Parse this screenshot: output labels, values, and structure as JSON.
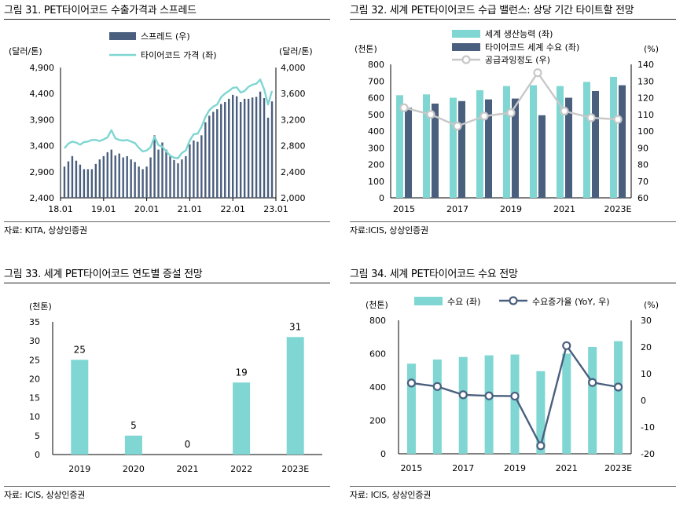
{
  "panels": [
    {
      "title": "그림 31. PET타이어코드 수출가격과 스프레드",
      "source": "자료: KITA, 상상인증권",
      "chart_data": {
        "type": "bar+line",
        "left_unit": "(달러/톤)",
        "right_unit": "(달러/톤)",
        "left_ticks": [
          "4,900",
          "4,400",
          "3,900",
          "3,400",
          "2,900",
          "2,400"
        ],
        "right_ticks": [
          "4,000",
          "3,600",
          "3,200",
          "2,800",
          "2,400",
          "2,000"
        ],
        "ylim_left": [
          2400,
          4900
        ],
        "ylim_right": [
          2000,
          4000
        ],
        "x_ticks": [
          "18.01",
          "19.01",
          "20.01",
          "21.01",
          "22.01",
          "23.01"
        ],
        "series": [
          {
            "name": "스프레드 (우)",
            "type": "bar",
            "color": "#4a5f7e",
            "axis": "right",
            "values": [
              2480,
              2560,
              2640,
              2570,
              2510,
              2440,
              2440,
              2440,
              2520,
              2590,
              2640,
              2700,
              2740,
              2650,
              2680,
              2620,
              2640,
              2590,
              2550,
              2480,
              2440,
              2480,
              2620,
              2960,
              2740,
              2850,
              2740,
              2640,
              2580,
              2530,
              2590,
              2640,
              2820,
              2880,
              2860,
              2960,
              3160,
              3260,
              3320,
              3360,
              3440,
              3470,
              3520,
              3580,
              3560,
              3470,
              3520,
              3520,
              3540,
              3550,
              3630,
              3530,
              3230,
              3480
            ]
          },
          {
            "name": "타이어코드 가격 (좌)",
            "type": "line",
            "color": "#7fd6d2",
            "axis": "left",
            "values": [
              3350,
              3440,
              3480,
              3460,
              3420,
              3470,
              3480,
              3510,
              3510,
              3490,
              3520,
              3560,
              3700,
              3540,
              3510,
              3500,
              3510,
              3480,
              3450,
              3360,
              3290,
              3310,
              3370,
              3570,
              3410,
              3380,
              3290,
              3210,
              3170,
              3160,
              3260,
              3310,
              3500,
              3620,
              3630,
              3760,
              3950,
              4080,
              4150,
              4190,
              4330,
              4400,
              4450,
              4510,
              4520,
              4420,
              4450,
              4530,
              4570,
              4590,
              4670,
              4480,
              4190,
              4450
            ]
          }
        ]
      }
    },
    {
      "title": "그림 32. 세계 PET타이어코드 수급 밸런스: 상당 기간 타이트할 전망",
      "source": "자료:ICIS, 상상인증권",
      "chart_data": {
        "type": "bar+line",
        "left_unit": "(천톤)",
        "right_unit": "(%)",
        "ylim_left": [
          0,
          800
        ],
        "ylim_right": [
          60,
          140
        ],
        "left_ticks": [
          "800",
          "700",
          "600",
          "500",
          "400",
          "300",
          "200",
          "100",
          "0"
        ],
        "right_ticks": [
          "140",
          "130",
          "120",
          "110",
          "100",
          "90",
          "80",
          "70",
          "60"
        ],
        "categories": [
          "2015",
          "2016",
          "2017",
          "2018",
          "2019",
          "2020",
          "2021",
          "2022",
          "2023E"
        ],
        "x_ticks": [
          "2015",
          "2017",
          "2019",
          "2021",
          "2023E"
        ],
        "series": [
          {
            "name": "세계 생산능력 (좌)",
            "type": "bar",
            "color": "#7fd6d2",
            "axis": "left",
            "values": [
              615,
              620,
              600,
              645,
              670,
              675,
              670,
              695,
              725
            ]
          },
          {
            "name": "타이어코드 세계 수요 (좌)",
            "type": "bar",
            "color": "#4a5f7e",
            "axis": "left",
            "values": [
              540,
              565,
              580,
              590,
              595,
              495,
              600,
              640,
              675
            ]
          },
          {
            "name": "공급과잉정도 (우)",
            "type": "line",
            "color": "#c8c8c8",
            "axis": "right",
            "values": [
              114,
              110,
              103,
              109,
              111,
              135,
              112,
              108,
              107
            ]
          }
        ]
      }
    },
    {
      "title": "그림 33. 세계 PET타이어코드 연도별 증설 전망",
      "source": "자료: ICIS, 상상인증권",
      "chart_data": {
        "type": "bar",
        "unit": "(천톤)",
        "ylim": [
          0,
          35
        ],
        "y_ticks": [
          "35",
          "30",
          "25",
          "20",
          "15",
          "10",
          "5",
          "0"
        ],
        "categories": [
          "2019",
          "2020",
          "2021",
          "2022",
          "2023E"
        ],
        "values": [
          25,
          5,
          0,
          19,
          31
        ],
        "labels": [
          "25",
          "5",
          "0",
          "19",
          "31"
        ],
        "color": "#7fd6d2"
      }
    },
    {
      "title": "그림 34. 세계 PET타이어코드 수요 전망",
      "source": "자료: ICIS, 상상인증권",
      "chart_data": {
        "type": "bar+line",
        "left_unit": "(천톤)",
        "right_unit": "(%)",
        "ylim_left": [
          0,
          800
        ],
        "ylim_right": [
          -20,
          30
        ],
        "left_ticks": [
          "800",
          "600",
          "400",
          "200",
          "0"
        ],
        "right_ticks": [
          "30",
          "20",
          "10",
          "0",
          "-10",
          "-20"
        ],
        "categories": [
          "2015",
          "2016",
          "2017",
          "2018",
          "2019",
          "2020",
          "2021",
          "2022",
          "2023E"
        ],
        "x_ticks": [
          "2015",
          "2017",
          "2019",
          "2021",
          "2023E"
        ],
        "series": [
          {
            "name": "수요 (좌)",
            "type": "bar",
            "color": "#7fd6d2",
            "axis": "left",
            "values": [
              540,
              565,
              580,
              590,
              595,
              495,
              600,
              640,
              675
            ]
          },
          {
            "name": "수요증가율 (YoY, 우)",
            "type": "line",
            "color": "#4a5f7e",
            "axis": "right",
            "values": [
              6.5,
              5.2,
              2.1,
              1.7,
              1.6,
              -17,
              20.5,
              6.7,
              5.0
            ]
          }
        ]
      }
    }
  ]
}
